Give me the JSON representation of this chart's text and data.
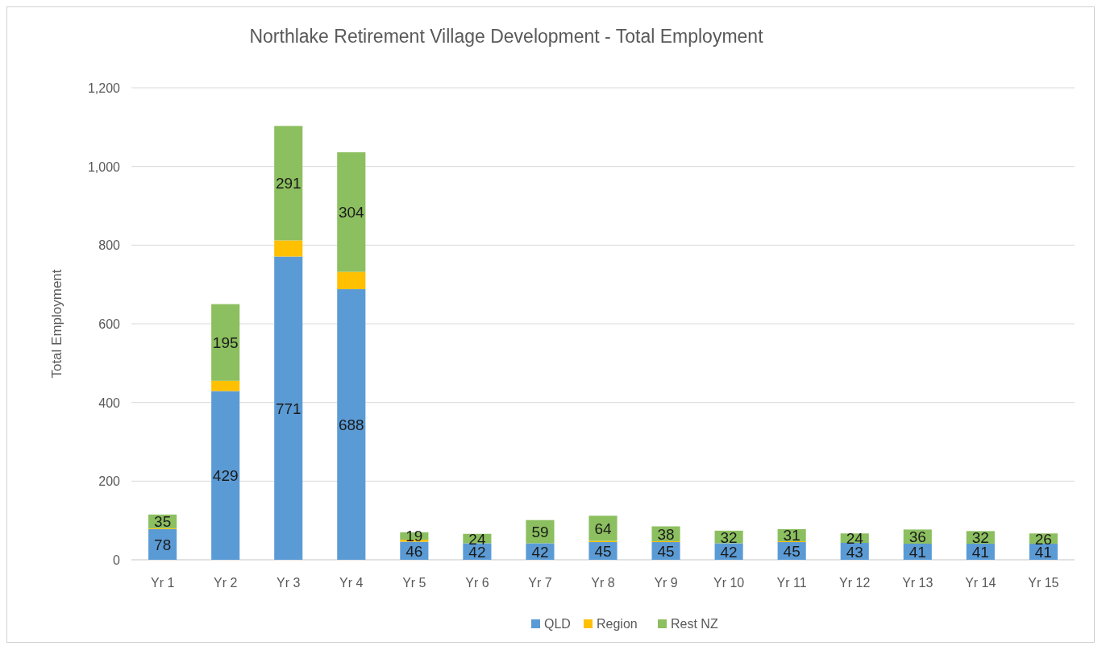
{
  "chart_data": {
    "type": "bar",
    "title": "Northlake Retirement Village Development - Total Employment",
    "ylabel": "Total Employment",
    "categories": [
      "Yr 1",
      "Yr 2",
      "Yr 3",
      "Yr 4",
      "Yr 5",
      "Yr 6",
      "Yr 7",
      "Yr 8",
      "Yr 9",
      "Yr 10",
      "Yr 11",
      "Yr 12",
      "Yr 13",
      "Yr 14",
      "Yr 15"
    ],
    "stacked": true,
    "series": [
      {
        "name": "QLD",
        "color": "#5b9bd5",
        "values": [
          78,
          429,
          771,
          688,
          46,
          42,
          42,
          45,
          45,
          42,
          45,
          43,
          41,
          41,
          41
        ],
        "value_labels": [
          "78",
          "429",
          "771",
          "688",
          "46",
          "42",
          "42",
          "45",
          "45",
          "42",
          "45",
          "43",
          "41",
          "41",
          "41"
        ]
      },
      {
        "name": "Region",
        "color": "#ffc000",
        "values": [
          2,
          26,
          41,
          44,
          5,
          null,
          null,
          3,
          2,
          null,
          2,
          null,
          null,
          null,
          null
        ]
      },
      {
        "name": "Rest NZ",
        "color": "#8cbf5f",
        "values": [
          35,
          195,
          291,
          304,
          19,
          24,
          59,
          64,
          38,
          32,
          31,
          24,
          36,
          32,
          26
        ],
        "value_labels": [
          "35",
          "195",
          "291",
          "304",
          "19",
          "24",
          "59",
          "64",
          "38",
          "32",
          "31",
          "24",
          "36",
          "32",
          "26"
        ]
      }
    ],
    "ylim": [
      0,
      1200
    ],
    "yticks": [
      {
        "value": 0,
        "label": "0"
      },
      {
        "value": 200,
        "label": "200"
      },
      {
        "value": 400,
        "label": "400"
      },
      {
        "value": 600,
        "label": "600"
      },
      {
        "value": 800,
        "label": "800"
      },
      {
        "value": 1000,
        "label": "1,000"
      },
      {
        "value": 1200,
        "label": "1,200"
      }
    ],
    "grid": "y",
    "legend": "bottom"
  }
}
